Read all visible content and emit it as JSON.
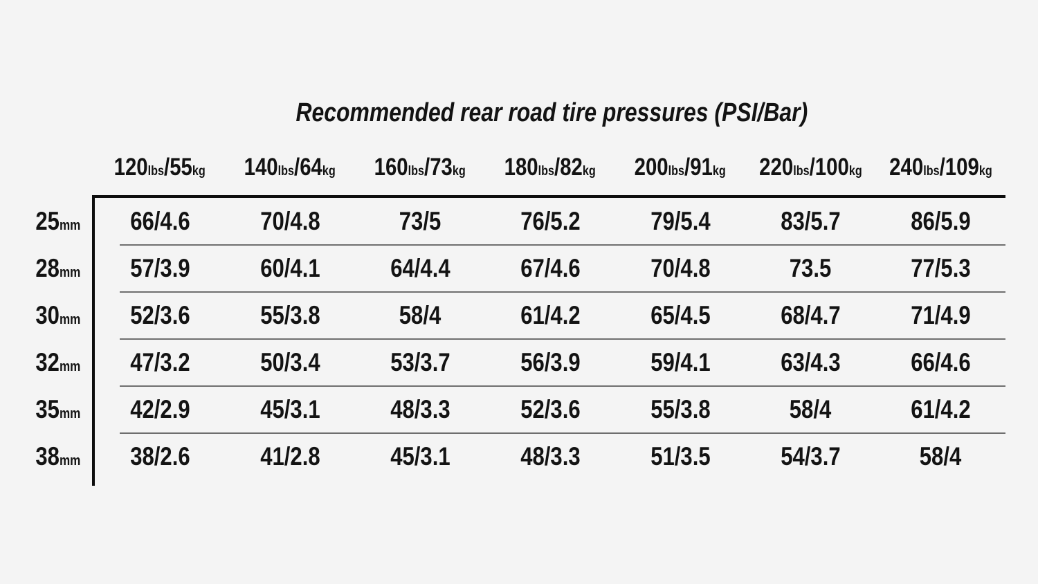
{
  "title": "Recommended rear road tire pressures (PSI/Bar)",
  "chart_data": {
    "type": "table",
    "title": "Recommended rear road tire pressures (PSI/Bar)",
    "column_headers": [
      "120lbs/55kg",
      "140lbs/64kg",
      "160lbs/73kg",
      "180lbs/82kg",
      "200lbs/91kg",
      "220lbs/100kg",
      "240lbs/109kg"
    ],
    "row_labels": [
      "25mm",
      "28mm",
      "30mm",
      "32mm",
      "35mm",
      "38mm"
    ],
    "values": [
      [
        "66/4.6",
        "70/4.8",
        "73/5",
        "76/5.2",
        "79/5.4",
        "83/5.7",
        "86/5.9"
      ],
      [
        "57/3.9",
        "60/4.1",
        "64/4.4",
        "67/4.6",
        "70/4.8",
        "73.5",
        "77/5.3"
      ],
      [
        "52/3.6",
        "55/3.8",
        "58/4",
        "61/4.2",
        "65/4.5",
        "68/4.7",
        "71/4.9"
      ],
      [
        "47/3.2",
        "50/3.4",
        "53/3.7",
        "56/3.9",
        "59/4.1",
        "63/4.3",
        "66/4.6"
      ],
      [
        "42/2.9",
        "45/3.1",
        "48/3.3",
        "52/3.6",
        "55/3.8",
        "58/4",
        "61/4.2"
      ],
      [
        "38/2.6",
        "41/2.8",
        "45/3.1",
        "48/3.3",
        "51/3.5",
        "54/3.7",
        "58/4"
      ]
    ],
    "units": {
      "pressure": "PSI/Bar",
      "rider_weight": "lbs/kg",
      "tire_width": "mm"
    },
    "layout_hints": {
      "grid": "horizontal row separators only",
      "header_axis": "rider weight",
      "row_axis": "tire width"
    }
  },
  "table": {
    "units": {
      "lbs": "lbs",
      "kg": "kg",
      "size": "mm",
      "separator": "/"
    },
    "columns": [
      {
        "lbs": "120",
        "kg": "55"
      },
      {
        "lbs": "140",
        "kg": "64"
      },
      {
        "lbs": "160",
        "kg": "73"
      },
      {
        "lbs": "180",
        "kg": "82"
      },
      {
        "lbs": "200",
        "kg": "91"
      },
      {
        "lbs": "220",
        "kg": "100"
      },
      {
        "lbs": "240",
        "kg": "109"
      }
    ],
    "rows": [
      {
        "size": "25",
        "cells": [
          "66/4.6",
          "70/4.8",
          "73/5",
          "76/5.2",
          "79/5.4",
          "83/5.7",
          "86/5.9"
        ]
      },
      {
        "size": "28",
        "cells": [
          "57/3.9",
          "60/4.1",
          "64/4.4",
          "67/4.6",
          "70/4.8",
          "73.5",
          "77/5.3"
        ]
      },
      {
        "size": "30",
        "cells": [
          "52/3.6",
          "55/3.8",
          "58/4",
          "61/4.2",
          "65/4.5",
          "68/4.7",
          "71/4.9"
        ]
      },
      {
        "size": "32",
        "cells": [
          "47/3.2",
          "50/3.4",
          "53/3.7",
          "56/3.9",
          "59/4.1",
          "63/4.3",
          "66/4.6"
        ]
      },
      {
        "size": "35",
        "cells": [
          "42/2.9",
          "45/3.1",
          "48/3.3",
          "52/3.6",
          "55/3.8",
          "58/4",
          "61/4.2"
        ]
      },
      {
        "size": "38",
        "cells": [
          "38/2.6",
          "41/2.8",
          "45/3.1",
          "48/3.3",
          "51/3.5",
          "54/3.7",
          "58/4"
        ]
      }
    ]
  },
  "colors": {
    "background": "#f4f4f4",
    "text": "#131313",
    "border": "#0d0d0d",
    "row_separator": "#6e6e6e"
  }
}
